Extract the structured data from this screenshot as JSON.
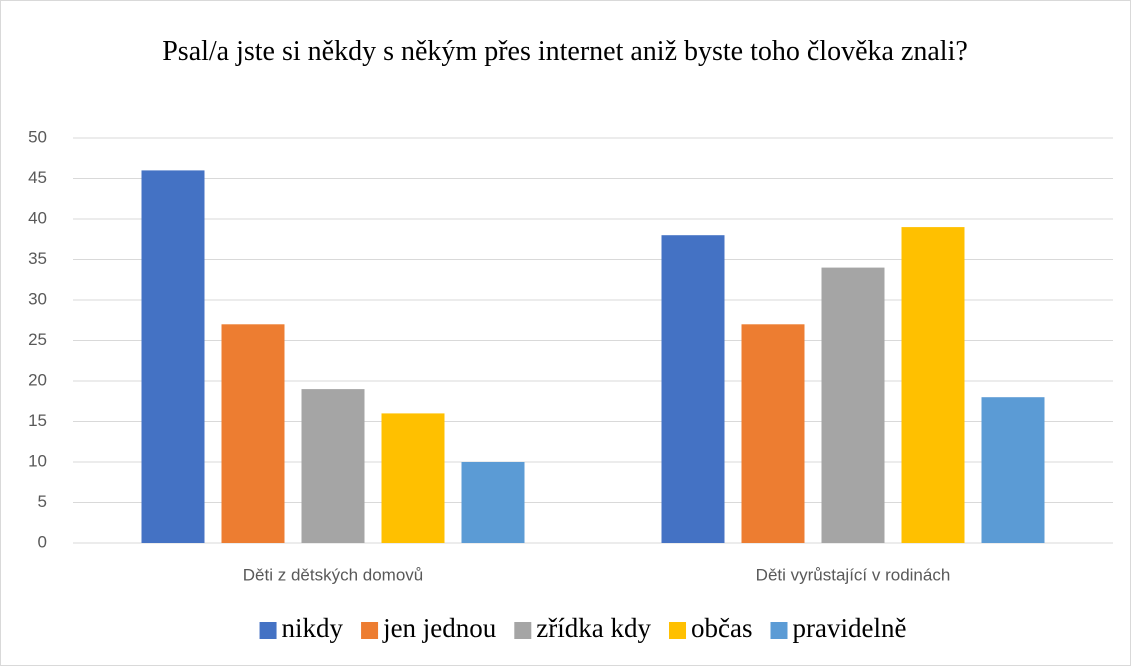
{
  "chart_data": {
    "type": "bar",
    "title": "Psal/a jste si někdy s někým přes internet aniž byste toho člověka znali?",
    "categories": [
      "Děti z dětských domovů",
      "Děti vyrůstající v rodinách"
    ],
    "series": [
      {
        "name": "nikdy",
        "color": "#4472c4",
        "values": [
          46,
          38
        ]
      },
      {
        "name": "jen jednou",
        "color": "#ed7d31",
        "values": [
          27,
          27
        ]
      },
      {
        "name": "zřídka kdy",
        "color": "#a5a5a5",
        "values": [
          19,
          34
        ]
      },
      {
        "name": "občas",
        "color": "#ffc000",
        "values": [
          16,
          39
        ]
      },
      {
        "name": "pravidelně",
        "color": "#5b9bd5",
        "values": [
          10,
          18
        ]
      }
    ],
    "ylim": [
      0,
      50
    ],
    "yticks": [
      0,
      5,
      10,
      15,
      20,
      25,
      30,
      35,
      40,
      45,
      50
    ],
    "grid": true,
    "legend": "bottom"
  }
}
